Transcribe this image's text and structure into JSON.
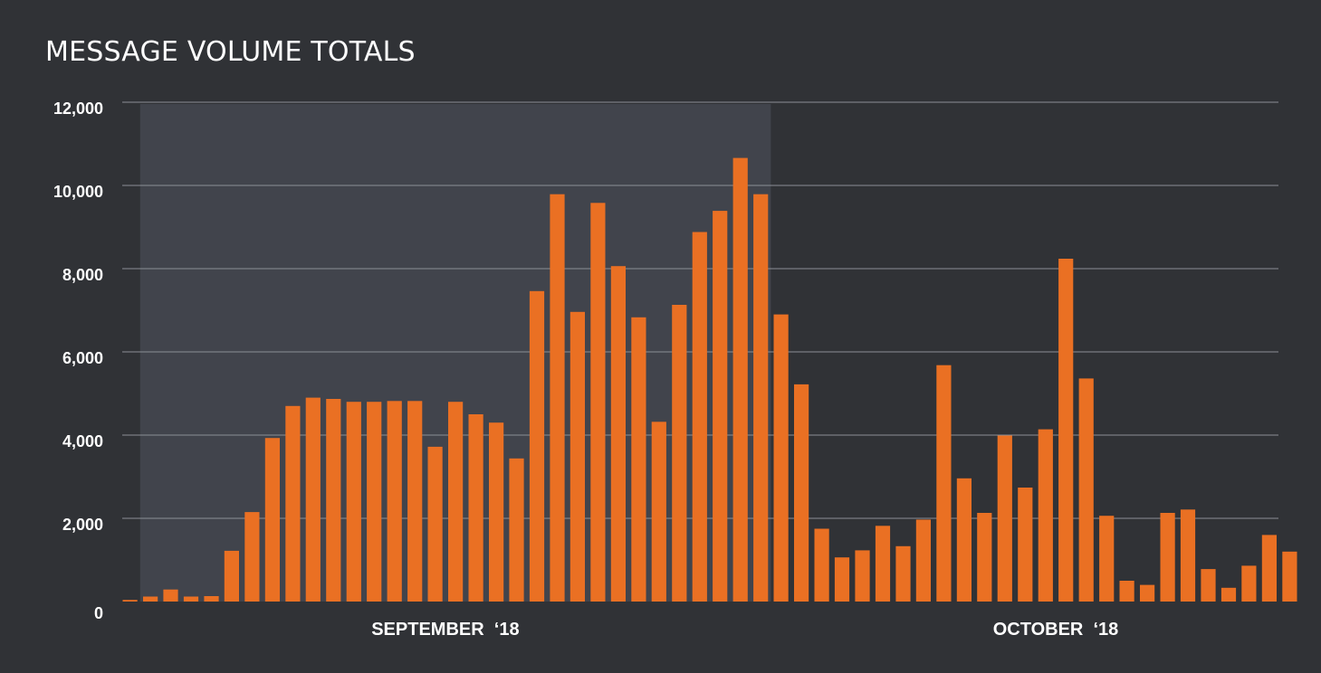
{
  "title": "MESSAGE VOLUME TOTALS",
  "colors": {
    "background": "#303236",
    "bar": "#ea7023",
    "highlight": "#41444c",
    "grid": "#8c8f96"
  },
  "chart_data": {
    "type": "bar",
    "title": "MESSAGE VOLUME TOTALS",
    "xlabel": "",
    "ylabel": "",
    "ylim": [
      0,
      12000
    ],
    "y_ticks": [
      0,
      2000,
      4000,
      6000,
      8000,
      10000,
      12000
    ],
    "y_tick_labels": [
      "0",
      "2,000",
      "4,000",
      "6,000",
      "8,000",
      "10,000",
      "12,000"
    ],
    "grid": true,
    "month_labels": [
      {
        "label": "SEPTEMBER  ‘18",
        "center_index": 15.5
      },
      {
        "label": "OCTOBER  ‘18",
        "center_index": 45.5
      }
    ],
    "highlight_range": [
      1,
      31
    ],
    "values": [
      40,
      120,
      290,
      120,
      130,
      1220,
      2150,
      3930,
      4700,
      4900,
      4870,
      4800,
      4800,
      4820,
      4820,
      3720,
      4800,
      4500,
      4300,
      3440,
      7460,
      9790,
      6960,
      9580,
      8060,
      6830,
      4320,
      7130,
      8880,
      9390,
      10660,
      9790,
      6900,
      5220,
      1750,
      1060,
      1230,
      1820,
      1330,
      1970,
      5680,
      2960,
      2130,
      3990,
      2740,
      4140,
      8240,
      5360,
      2060,
      500,
      400,
      2130,
      2210,
      780,
      330,
      860,
      1600,
      1200
    ]
  }
}
